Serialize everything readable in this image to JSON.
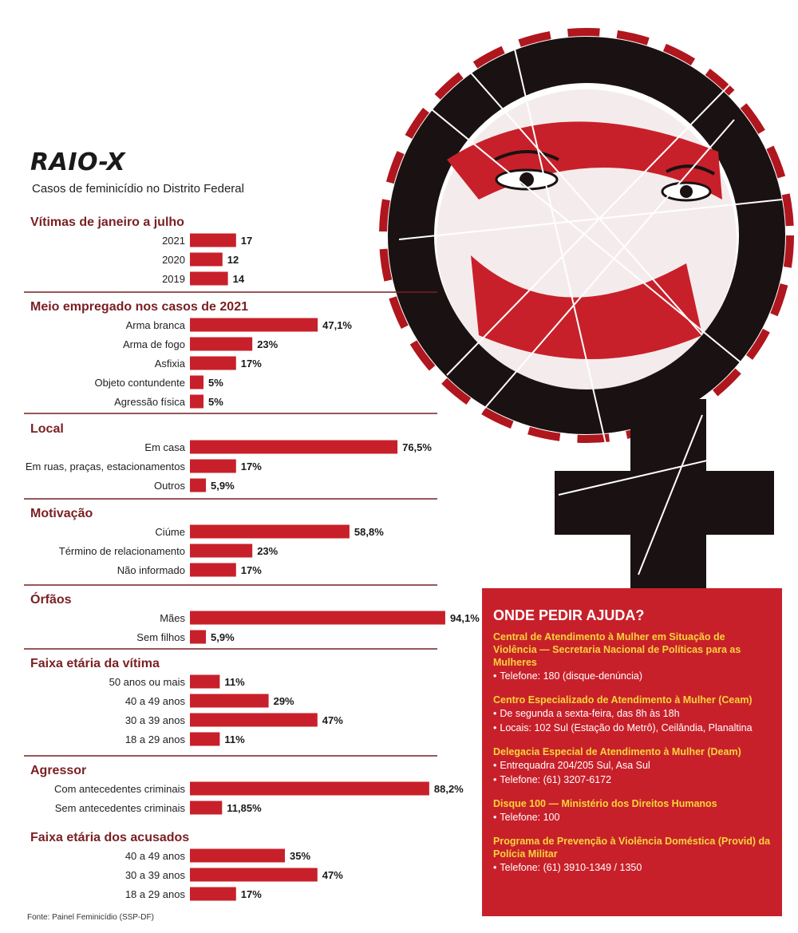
{
  "header": {
    "title": "RAIO-X",
    "subtitle": "Casos de feminicídio no Distrito Federal"
  },
  "colors": {
    "bar": "#c8202a",
    "rule": "#7a1f22",
    "help_bg": "#c8202a",
    "help_title": "#f7d43a",
    "art_dark": "#1a1212"
  },
  "illustration": {
    "name": "venus-symbol-woman-illustration"
  },
  "chart_data": [
    {
      "type": "bar",
      "orientation": "horizontal",
      "title": "Vítimas de janeiro a julho",
      "categories": [
        "2021",
        "2020",
        "2019"
      ],
      "values": [
        17,
        12,
        14
      ],
      "labels": [
        "17",
        "12",
        "14"
      ]
    },
    {
      "type": "bar",
      "orientation": "horizontal",
      "title": "Meio empregado nos casos de 2021",
      "categories": [
        "Arma branca",
        "Arma de fogo",
        "Asfixia",
        "Objeto contundente",
        "Agressão física"
      ],
      "values": [
        47.1,
        23,
        17,
        5,
        5
      ],
      "labels": [
        "47,1%",
        "23%",
        "17%",
        "5%",
        "5%"
      ]
    },
    {
      "type": "bar",
      "orientation": "horizontal",
      "title": "Local",
      "categories": [
        "Em casa",
        "Em ruas, praças, estacionamentos",
        "Outros"
      ],
      "values": [
        76.5,
        17,
        5.9
      ],
      "labels": [
        "76,5%",
        "17%",
        "5,9%"
      ]
    },
    {
      "type": "bar",
      "orientation": "horizontal",
      "title": "Motivação",
      "categories": [
        "Ciúme",
        "Término de relacionamento",
        "Não informado"
      ],
      "values": [
        58.8,
        23,
        17
      ],
      "labels": [
        "58,8%",
        "23%",
        "17%"
      ]
    },
    {
      "type": "bar",
      "orientation": "horizontal",
      "title": "Órfãos",
      "categories": [
        "Mães",
        "Sem filhos"
      ],
      "values": [
        94.1,
        5.9
      ],
      "labels": [
        "94,1%",
        "5,9%"
      ]
    },
    {
      "type": "bar",
      "orientation": "horizontal",
      "title": "Faixa etária da vítima",
      "categories": [
        "50 anos ou mais",
        "40 a 49 anos",
        "30 a 39 anos",
        "18 a 29 anos"
      ],
      "values": [
        11,
        29,
        47,
        11
      ],
      "labels": [
        "11%",
        "29%",
        "47%",
        "11%"
      ]
    },
    {
      "type": "bar",
      "orientation": "horizontal",
      "title": "Agressor",
      "categories": [
        "Com antecedentes criminais",
        "Sem antecedentes criminais"
      ],
      "values": [
        88.2,
        11.85
      ],
      "labels": [
        "88,2%",
        "11,85%"
      ]
    },
    {
      "type": "bar",
      "orientation": "horizontal",
      "title": "Faixa etária dos acusados",
      "categories": [
        "40 a 49 anos",
        "30  a 39 anos",
        "18 a 29 anos"
      ],
      "values": [
        35,
        47,
        17
      ],
      "labels": [
        "35%",
        "47%",
        "17%"
      ]
    }
  ],
  "source": "Fonte: Painel Feminicídio (SSP-DF)",
  "help": {
    "title": "ONDE PEDIR AJUDA?",
    "entries": [
      {
        "title": "Central de Atendimento à Mulher em Situação de Violência — Secretaria Nacional de Políticas para as Mulheres",
        "items": [
          "Telefone: 180 (disque-denúncia)"
        ]
      },
      {
        "title": "Centro Especializado de Atendimento à Mulher (Ceam)",
        "items": [
          "De segunda a sexta-feira, das 8h às 18h",
          "Locais: 102 Sul (Estação do Metrô), Ceilândia, Planaltina"
        ]
      },
      {
        "title": "Delegacia Especial de Atendimento à Mulher (Deam)",
        "items": [
          "Entrequadra 204/205 Sul, Asa Sul",
          "Telefone: (61) 3207-6172"
        ]
      },
      {
        "title": "Disque 100 — Ministério dos Direitos Humanos",
        "items": [
          "Telefone: 100"
        ]
      },
      {
        "title": "Programa de Prevenção à Violência Doméstica (Provid) da Polícia Militar",
        "items": [
          "Telefone: (61) 3910-1349 / 1350"
        ]
      }
    ]
  }
}
